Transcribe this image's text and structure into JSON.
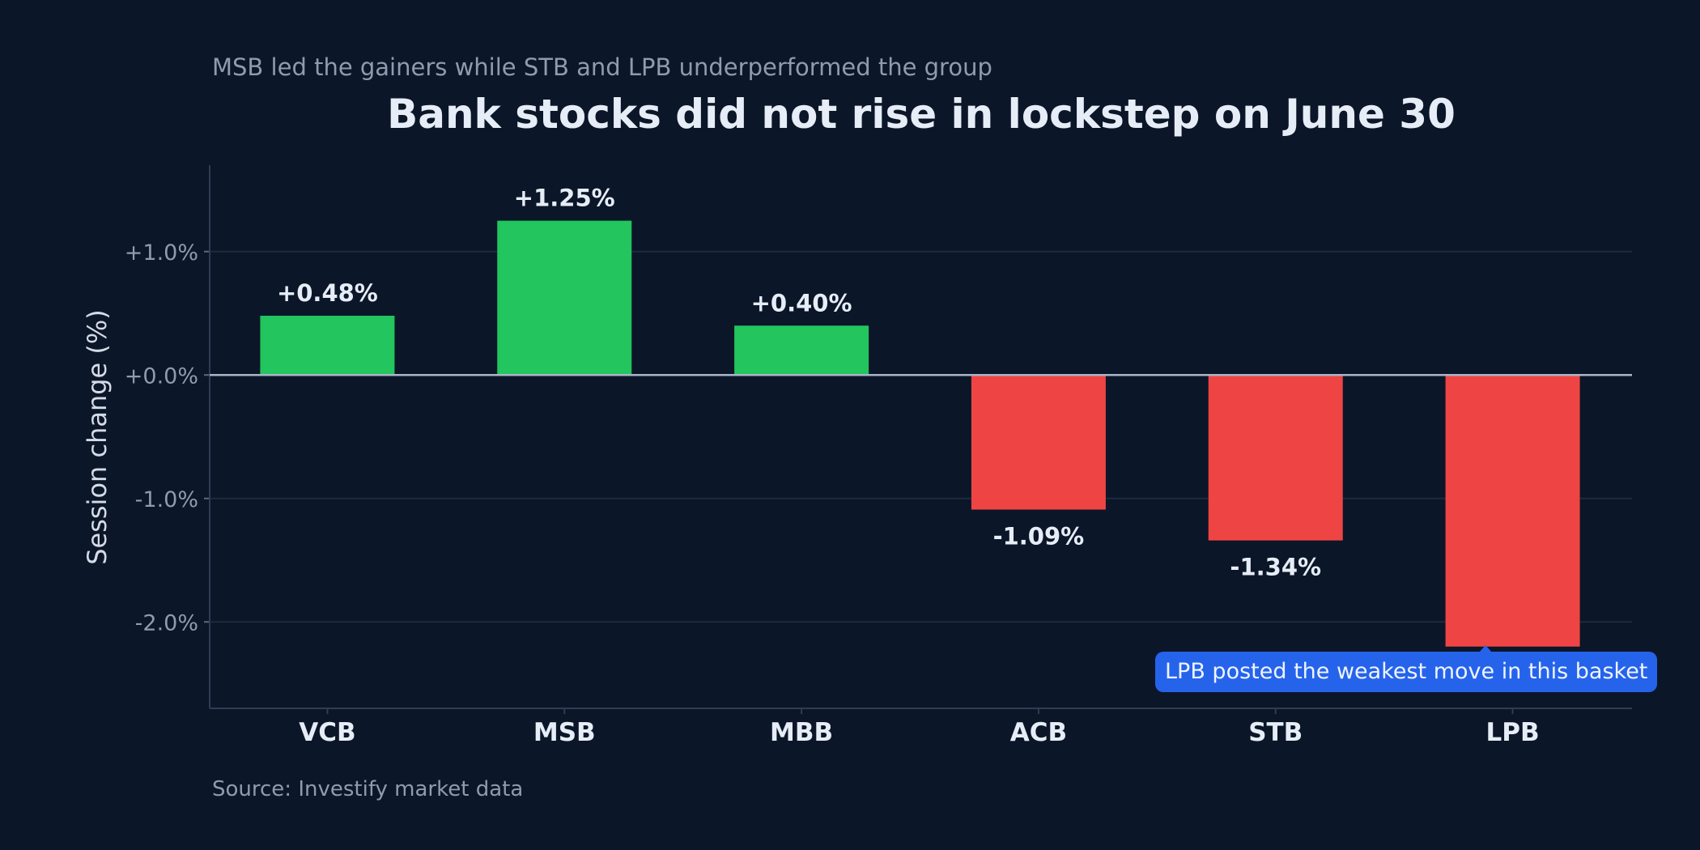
{
  "subtitle": "MSB led the gainers while STB and LPB underperformed the group",
  "title": "Bank stocks did not rise in lockstep on June 30",
  "source": "Source: Investify market data",
  "colors": {
    "background": "#0b1628",
    "positive": "#22c55e",
    "negative": "#ef4444",
    "callout": "#2563eb",
    "grid": "#1c2a3f",
    "zero_line": "#aab6c8",
    "axis_text": "#8e9bb0",
    "label_text": "#e6edf7"
  },
  "chart_data": {
    "type": "bar",
    "title": "Bank stocks did not rise in lockstep on June 30",
    "subtitle": "MSB led the gainers while STB and LPB underperformed the group",
    "xlabel": "",
    "ylabel": "Session change (%)",
    "categories": [
      "VCB",
      "MSB",
      "MBB",
      "ACB",
      "STB",
      "LPB"
    ],
    "values": [
      0.48,
      1.25,
      0.4,
      -1.09,
      -1.34,
      -2.2
    ],
    "data_labels": [
      "+0.48%",
      "+1.25%",
      "+0.40%",
      "-1.09%",
      "-1.34%",
      ""
    ],
    "ylim": [
      -2.7,
      1.7
    ],
    "yticks": [
      1.0,
      0.0,
      -1.0,
      -2.0
    ],
    "ytick_labels": [
      "+1.0%",
      "+0.0%",
      "-1.0%",
      "-2.0%"
    ],
    "grid": true,
    "annotation": {
      "category": "LPB",
      "text": "LPB posted the weakest move in this basket"
    }
  }
}
